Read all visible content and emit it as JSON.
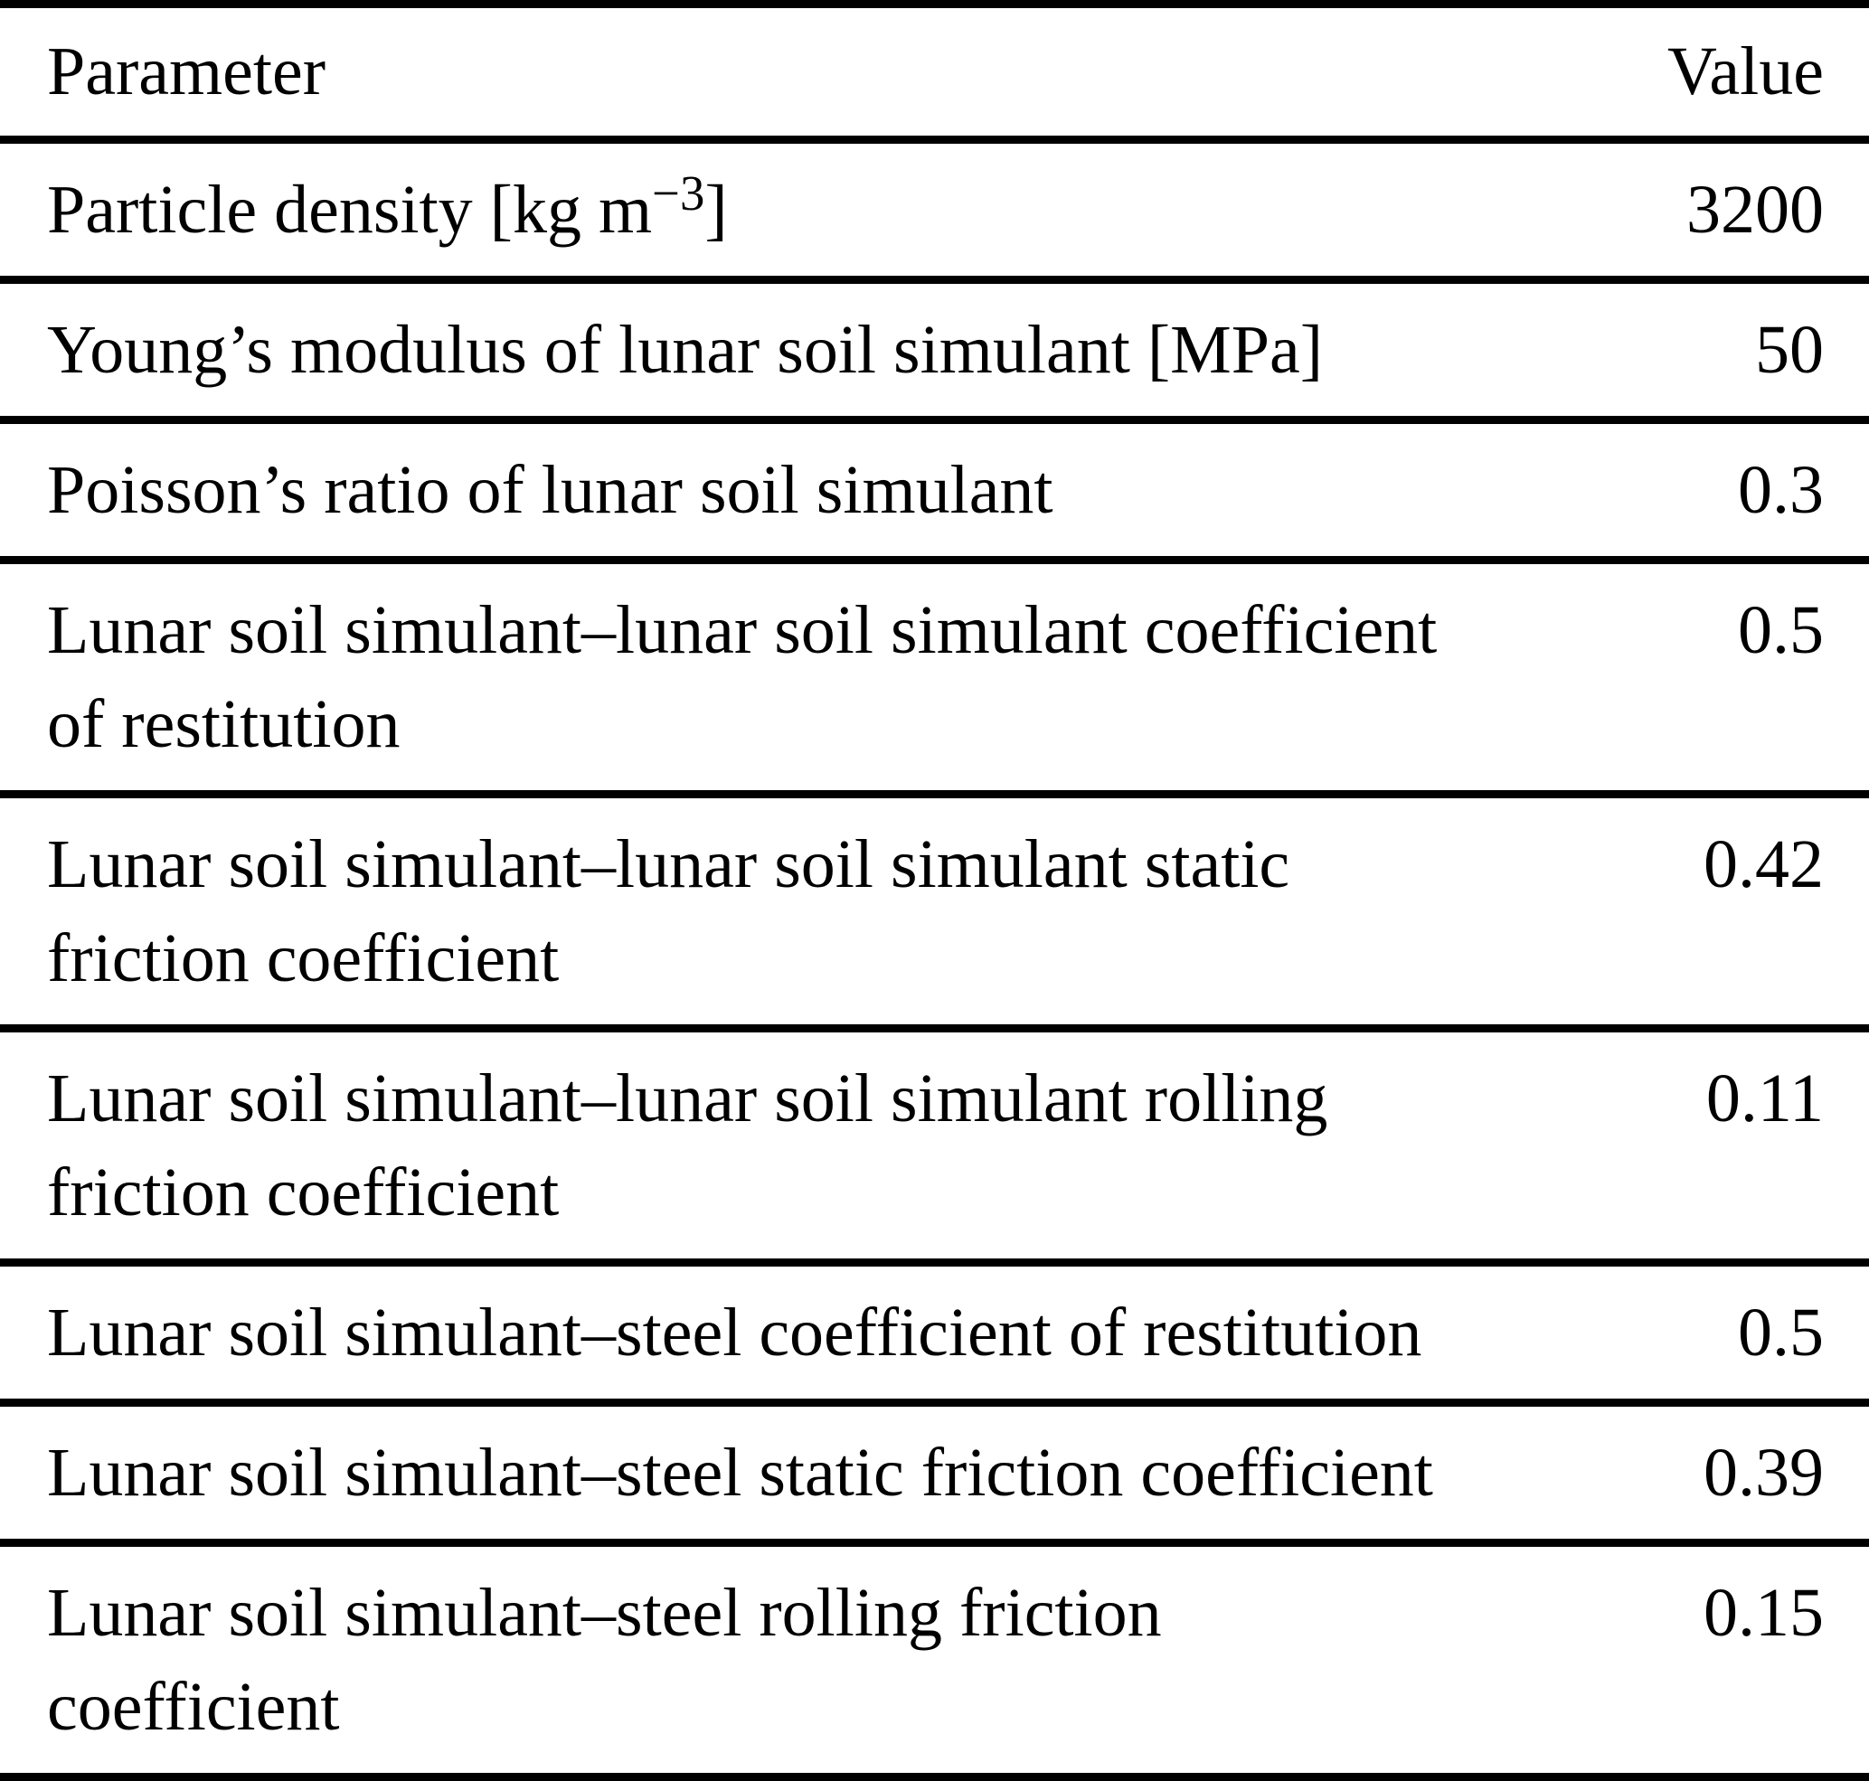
{
  "colors": {
    "text": "#000000",
    "background": "#ffffff",
    "rule": "#000000"
  },
  "table": {
    "header": {
      "param": "Parameter",
      "value": "Value"
    },
    "rows": [
      {
        "param_pre": "Particle density [kg m",
        "param_sup": "−3",
        "param_post": "]",
        "value": "3200"
      },
      {
        "param": "Young’s modulus of lunar soil simulant [MPa]",
        "value": "50"
      },
      {
        "param": "Poisson’s ratio of lunar soil simulant",
        "value": "0.3"
      },
      {
        "param": "Lunar soil simulant–lunar soil simulant coefficient\nof restitution",
        "value": "0.5"
      },
      {
        "param": "Lunar soil simulant–lunar soil simulant static\nfriction coefficient",
        "value": "0.42"
      },
      {
        "param": "Lunar soil simulant–lunar soil simulant rolling\nfriction coefficient",
        "value": "0.11"
      },
      {
        "param": "Lunar soil simulant–steel coefficient of restitution",
        "value": "0.5"
      },
      {
        "param": "Lunar soil simulant–steel static friction coefficient",
        "value": "0.39"
      },
      {
        "param": "Lunar soil simulant–steel rolling friction\ncoefficient",
        "value": "0.15"
      }
    ]
  }
}
